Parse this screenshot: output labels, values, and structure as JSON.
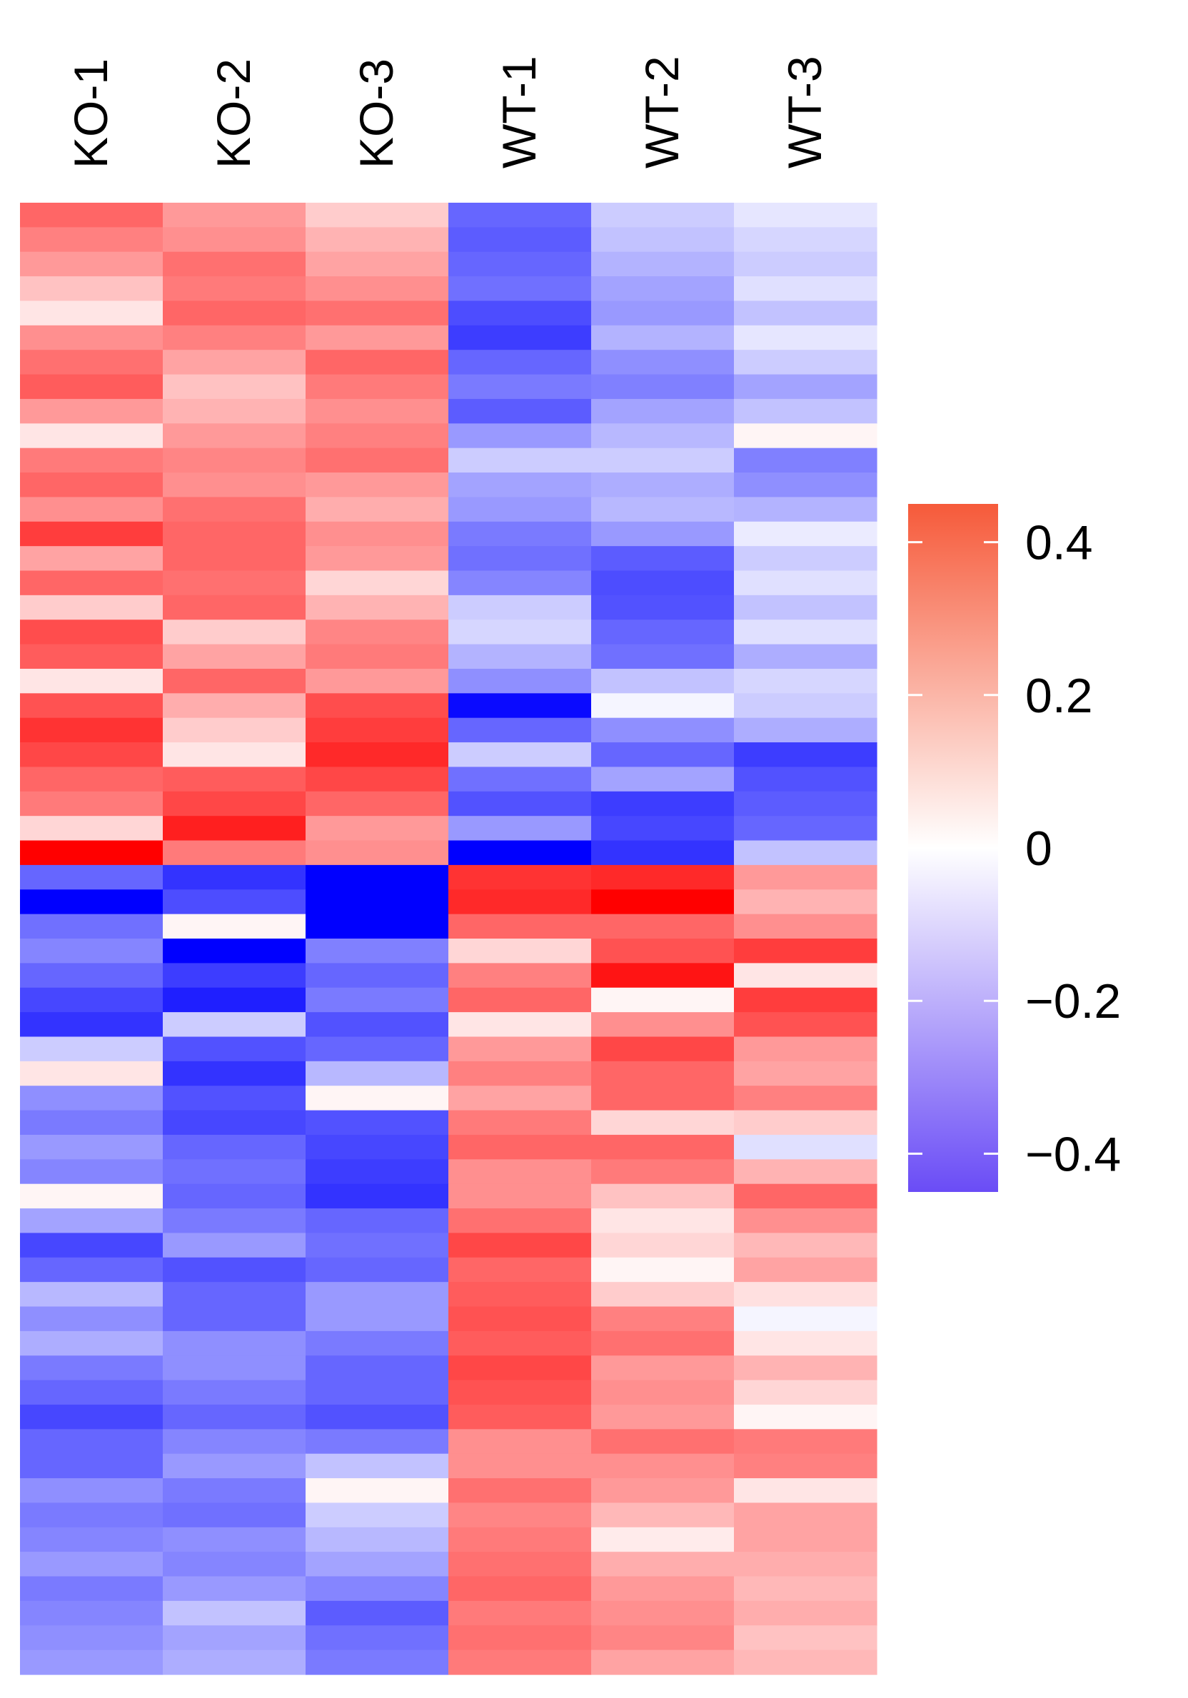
{
  "chart_data": {
    "type": "heatmap",
    "title": "",
    "columns": [
      "KO-1",
      "KO-2",
      "KO-3",
      "WT-1",
      "WT-2",
      "WT-3"
    ],
    "row_count": 60,
    "color_scale": {
      "min": -0.5,
      "max": 0.5,
      "low_color": "#0000ff",
      "mid_color": "#ffffff",
      "high_color": "#ff0000",
      "legend_low_color": "#6a4cf6",
      "legend_high_color": "#f65a3a",
      "legend_range": [
        -0.45,
        0.45
      ],
      "legend_ticks": [
        0.4,
        0.2,
        0,
        -0.2,
        -0.4
      ],
      "legend_tick_labels": [
        "0.4",
        "0.2",
        "0",
        "−0.2",
        "−0.4"
      ],
      "legend_placement": "right"
    },
    "values": [
      [
        0.3,
        0.2,
        0.1,
        -0.3,
        -0.1,
        -0.05
      ],
      [
        0.25,
        0.22,
        0.15,
        -0.32,
        -0.12,
        -0.08
      ],
      [
        0.2,
        0.28,
        0.18,
        -0.3,
        -0.15,
        -0.1
      ],
      [
        0.12,
        0.26,
        0.22,
        -0.28,
        -0.18,
        -0.06
      ],
      [
        0.05,
        0.3,
        0.28,
        -0.35,
        -0.2,
        -0.12
      ],
      [
        0.22,
        0.25,
        0.2,
        -0.38,
        -0.15,
        -0.05
      ],
      [
        0.28,
        0.18,
        0.3,
        -0.3,
        -0.22,
        -0.1
      ],
      [
        0.32,
        0.12,
        0.26,
        -0.26,
        -0.25,
        -0.18
      ],
      [
        0.2,
        0.15,
        0.22,
        -0.32,
        -0.18,
        -0.12
      ],
      [
        0.05,
        0.2,
        0.25,
        -0.2,
        -0.14,
        0.02
      ],
      [
        0.26,
        0.24,
        0.28,
        -0.1,
        -0.1,
        -0.25
      ],
      [
        0.3,
        0.22,
        0.2,
        -0.18,
        -0.16,
        -0.22
      ],
      [
        0.22,
        0.28,
        0.16,
        -0.2,
        -0.14,
        -0.15
      ],
      [
        0.38,
        0.3,
        0.22,
        -0.26,
        -0.2,
        -0.04
      ],
      [
        0.18,
        0.3,
        0.2,
        -0.28,
        -0.32,
        -0.1
      ],
      [
        0.3,
        0.28,
        0.08,
        -0.24,
        -0.35,
        -0.06
      ],
      [
        0.1,
        0.3,
        0.15,
        -0.1,
        -0.34,
        -0.12
      ],
      [
        0.35,
        0.1,
        0.24,
        -0.08,
        -0.3,
        -0.06
      ],
      [
        0.32,
        0.18,
        0.26,
        -0.15,
        -0.28,
        -0.16
      ],
      [
        0.05,
        0.3,
        0.2,
        -0.22,
        -0.12,
        -0.08
      ],
      [
        0.34,
        0.16,
        0.35,
        -0.48,
        -0.02,
        -0.1
      ],
      [
        0.4,
        0.1,
        0.38,
        -0.3,
        -0.22,
        -0.16
      ],
      [
        0.36,
        0.05,
        0.42,
        -0.1,
        -0.3,
        -0.38
      ],
      [
        0.3,
        0.32,
        0.36,
        -0.28,
        -0.18,
        -0.34
      ],
      [
        0.26,
        0.36,
        0.3,
        -0.34,
        -0.38,
        -0.32
      ],
      [
        0.08,
        0.44,
        0.2,
        -0.2,
        -0.36,
        -0.3
      ],
      [
        0.5,
        0.26,
        0.22,
        -0.5,
        -0.4,
        -0.12
      ],
      [
        -0.3,
        -0.4,
        -0.5,
        0.4,
        0.42,
        0.2
      ],
      [
        -0.5,
        -0.35,
        -0.5,
        0.42,
        0.5,
        0.15
      ],
      [
        -0.28,
        0.02,
        -0.5,
        0.3,
        0.3,
        0.22
      ],
      [
        -0.24,
        -0.5,
        -0.25,
        0.08,
        0.34,
        0.38
      ],
      [
        -0.3,
        -0.38,
        -0.3,
        0.25,
        0.46,
        0.05
      ],
      [
        -0.36,
        -0.44,
        -0.26,
        0.3,
        0.02,
        0.38
      ],
      [
        -0.4,
        -0.1,
        -0.34,
        0.05,
        0.22,
        0.34
      ],
      [
        -0.1,
        -0.34,
        -0.3,
        0.2,
        0.36,
        0.2
      ],
      [
        0.05,
        -0.4,
        -0.14,
        0.25,
        0.3,
        0.18
      ],
      [
        -0.22,
        -0.34,
        0.02,
        0.18,
        0.3,
        0.25
      ],
      [
        -0.26,
        -0.36,
        -0.34,
        0.26,
        0.08,
        0.1
      ],
      [
        -0.2,
        -0.3,
        -0.36,
        0.3,
        0.3,
        -0.06
      ],
      [
        -0.24,
        -0.28,
        -0.38,
        0.22,
        0.26,
        0.15
      ],
      [
        0.02,
        -0.3,
        -0.4,
        0.22,
        0.12,
        0.3
      ],
      [
        -0.18,
        -0.26,
        -0.3,
        0.28,
        0.05,
        0.22
      ],
      [
        -0.36,
        -0.2,
        -0.28,
        0.36,
        0.08,
        0.14
      ],
      [
        -0.3,
        -0.34,
        -0.3,
        0.3,
        0.02,
        0.18
      ],
      [
        -0.14,
        -0.3,
        -0.2,
        0.32,
        0.1,
        0.06
      ],
      [
        -0.22,
        -0.3,
        -0.2,
        0.34,
        0.25,
        -0.02
      ],
      [
        -0.16,
        -0.22,
        -0.26,
        0.32,
        0.28,
        0.05
      ],
      [
        -0.26,
        -0.22,
        -0.3,
        0.36,
        0.2,
        0.15
      ],
      [
        -0.3,
        -0.26,
        -0.3,
        0.34,
        0.22,
        0.08
      ],
      [
        -0.36,
        -0.3,
        -0.34,
        0.32,
        0.2,
        0.02
      ],
      [
        -0.3,
        -0.24,
        -0.26,
        0.22,
        0.28,
        0.26
      ],
      [
        -0.3,
        -0.2,
        -0.12,
        0.22,
        0.22,
        0.25
      ],
      [
        -0.22,
        -0.26,
        0.02,
        0.28,
        0.2,
        0.05
      ],
      [
        -0.26,
        -0.28,
        -0.1,
        0.24,
        0.14,
        0.18
      ],
      [
        -0.24,
        -0.22,
        -0.14,
        0.26,
        0.04,
        0.18
      ],
      [
        -0.2,
        -0.24,
        -0.18,
        0.28,
        0.16,
        0.16
      ],
      [
        -0.26,
        -0.2,
        -0.24,
        0.3,
        0.2,
        0.14
      ],
      [
        -0.24,
        -0.12,
        -0.32,
        0.26,
        0.22,
        0.16
      ],
      [
        -0.22,
        -0.18,
        -0.28,
        0.28,
        0.24,
        0.12
      ],
      [
        -0.2,
        -0.16,
        -0.26,
        0.26,
        0.18,
        0.14
      ]
    ]
  }
}
